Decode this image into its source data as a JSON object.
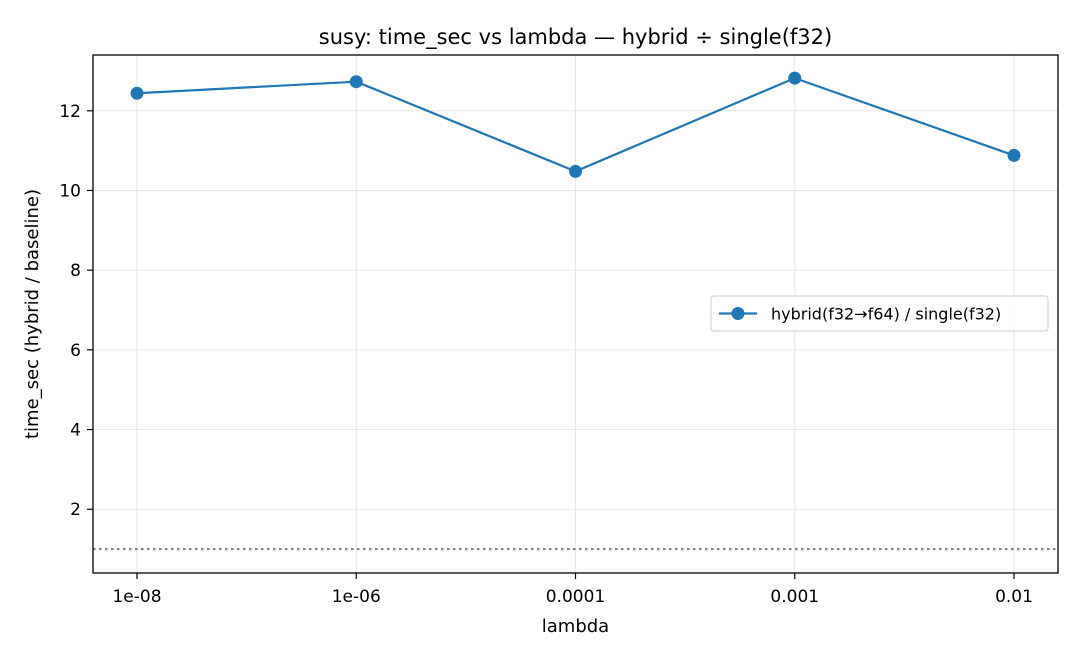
{
  "chart_data": {
    "type": "line",
    "title": "susy: time_sec vs lambda — hybrid ÷ single(f32)",
    "xlabel": "lambda",
    "ylabel": "time_sec (hybrid / baseline)",
    "categories": [
      "1e-08",
      "1e-06",
      "0.0001",
      "0.001",
      "0.01"
    ],
    "series": [
      {
        "name": "hybrid(f32→f64) / single(f32)",
        "values": [
          12.44,
          12.73,
          10.48,
          12.82,
          10.88
        ],
        "color": "#1f77b4",
        "marker": "circle"
      }
    ],
    "reference_line": {
      "y": 1.0,
      "style": "dotted",
      "color": "#808080"
    },
    "ylim": [
      0.4,
      13.4
    ],
    "yticks": [
      2,
      4,
      6,
      8,
      10,
      12
    ],
    "grid": true,
    "legend_position": "center-right"
  }
}
